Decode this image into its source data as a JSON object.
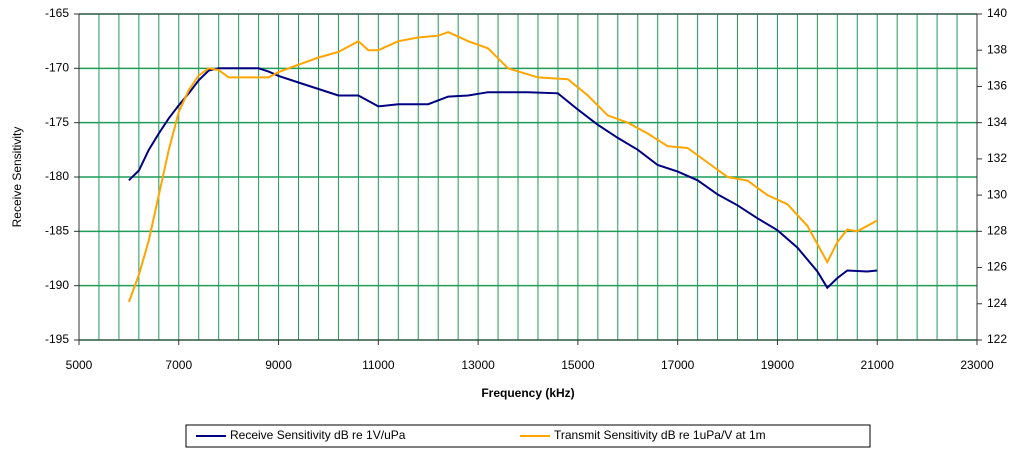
{
  "chart_data": {
    "type": "line",
    "xlabel": "Frequency (kHz)",
    "ylabel": "Receive Sensitivity",
    "xlim": [
      5000,
      23000
    ],
    "xticks": [
      5000,
      7000,
      9000,
      11000,
      13000,
      15000,
      17000,
      19000,
      21000,
      23000
    ],
    "xgrid_step": 400,
    "ylim": [
      -195,
      -165
    ],
    "yticks": [
      -195,
      -190,
      -185,
      -180,
      -175,
      -170,
      -165
    ],
    "y2lim": [
      122,
      140
    ],
    "y2ticks": [
      122,
      124,
      126,
      128,
      130,
      132,
      134,
      136,
      138,
      140
    ],
    "grid": true,
    "grid_color": "#1f9b5a",
    "legend": "bottom",
    "series": [
      {
        "name": "Receive Sensitivity dB re 1V/uPa",
        "color": "#000080",
        "x": [
          6000,
          6200,
          6400,
          6600,
          6800,
          7000,
          7200,
          7400,
          7600,
          7800,
          8000,
          8300,
          8600,
          8800,
          9000,
          9400,
          9800,
          10200,
          10600,
          11000,
          11400,
          12000,
          12400,
          12800,
          13200,
          13600,
          14000,
          14600,
          15000,
          15400,
          15800,
          16200,
          16600,
          17000,
          17400,
          17800,
          18200,
          18600,
          19000,
          19400,
          19800,
          20000,
          20200,
          20400,
          20800,
          21000
        ],
        "values": [
          -180.3,
          -179.4,
          -177.5,
          -176,
          -174.6,
          -173.4,
          -172.3,
          -171.1,
          -170.2,
          -170,
          -170,
          -170,
          -170,
          -170.3,
          -170.7,
          -171.3,
          -171.9,
          -172.5,
          -172.5,
          -173.5,
          -173.3,
          -173.3,
          -172.6,
          -172.5,
          -172.2,
          -172.2,
          -172.2,
          -172.3,
          -173.8,
          -175.2,
          -176.4,
          -177.5,
          -178.9,
          -179.5,
          -180.3,
          -181.6,
          -182.6,
          -183.8,
          -184.9,
          -186.5,
          -188.7,
          -190.2,
          -189.3,
          -188.6,
          -188.7,
          -188.6
        ]
      },
      {
        "name": "Transmit Sensitivity dB re 1uPa/V at 1m",
        "color": "#ffa500",
        "axis": "y2",
        "x": [
          6000,
          6200,
          6400,
          6600,
          6800,
          7000,
          7200,
          7400,
          7600,
          7800,
          8000,
          8400,
          8800,
          9000,
          9400,
          9800,
          10200,
          10600,
          10800,
          11000,
          11400,
          11800,
          12200,
          12400,
          12800,
          13200,
          13600,
          14200,
          14800,
          15200,
          15600,
          16000,
          16400,
          16800,
          17200,
          17600,
          18000,
          18400,
          18800,
          19200,
          19600,
          20000,
          20200,
          20400,
          20600,
          21000
        ],
        "values": [
          124.1,
          125.6,
          127.5,
          130,
          132.5,
          134.6,
          135.8,
          136.6,
          137,
          136.9,
          136.5,
          136.5,
          136.5,
          136.8,
          137.2,
          137.6,
          137.9,
          138.5,
          138,
          138,
          138.5,
          138.7,
          138.8,
          139,
          138.5,
          138.1,
          137,
          136.5,
          136.4,
          135.5,
          134.4,
          134,
          133.4,
          132.7,
          132.6,
          131.8,
          131,
          130.8,
          130,
          129.5,
          128.3,
          126.3,
          127.4,
          128.1,
          128,
          128.6
        ]
      }
    ]
  }
}
